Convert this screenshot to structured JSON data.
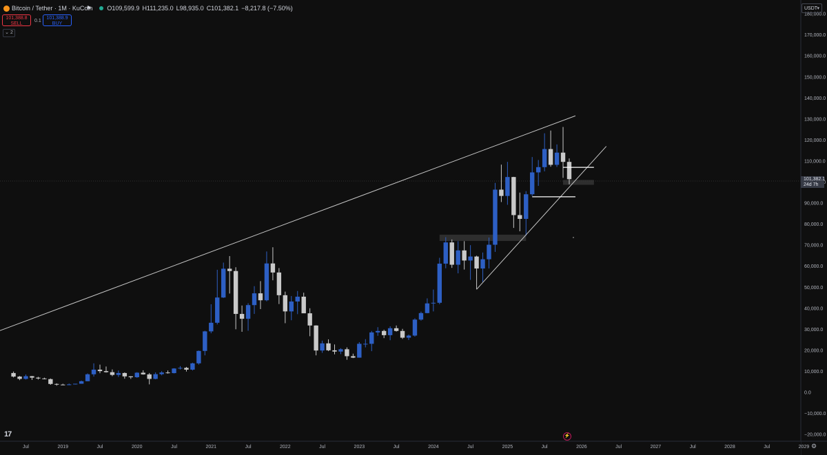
{
  "legend": {
    "symbol": "Bitcoin / Tether · 1M · KuCoin",
    "open": "O109,599.9",
    "high": "H111,235.0",
    "low": "L98,935.0",
    "close": "C101,382.1",
    "change": "−8,217.8 (−7.50%)"
  },
  "trade": {
    "sell_price": "101,388.8",
    "sell_label": "SELL",
    "spread": "0.1",
    "buy_price": "101,388.9",
    "buy_label": "BUY"
  },
  "indicator_count": "2",
  "currency": "USDT",
  "price_tag": {
    "price": "101,382.1",
    "countdown": "24d 7h"
  },
  "colors": {
    "up": "#2d5fc4",
    "down": "#c9c9c9",
    "background": "#0f0f0f",
    "trendline": "#c8c8c8"
  },
  "icons": {
    "logo": "tradingview-logo-icon",
    "flash": "flash-icon",
    "settings": "settings-icon"
  },
  "chart_data": {
    "type": "candlestick",
    "timeframe": "1M",
    "y_ticks": [
      "180,000.0",
      "170,000.0",
      "160,000.0",
      "150,000.0",
      "140,000.0",
      "130,000.0",
      "120,000.0",
      "110,000.0",
      "100,000.0",
      "90,000.0",
      "80,000.0",
      "70,000.0",
      "60,000.0",
      "50,000.0",
      "40,000.0",
      "30,000.0",
      "20,000.0",
      "10,000.0",
      "0.0",
      "−10,000.0",
      "−20,000.0"
    ],
    "y_tick_values": [
      180000,
      170000,
      160000,
      150000,
      140000,
      130000,
      120000,
      110000,
      100000,
      90000,
      80000,
      70000,
      60000,
      50000,
      40000,
      30000,
      20000,
      10000,
      0,
      -10000,
      -20000
    ],
    "x_ticks": [
      {
        "label": "Jul",
        "date": "2018-07"
      },
      {
        "label": "2019",
        "date": "2019-01"
      },
      {
        "label": "Jul",
        "date": "2019-07"
      },
      {
        "label": "2020",
        "date": "2020-01"
      },
      {
        "label": "Jul",
        "date": "2020-07"
      },
      {
        "label": "2021",
        "date": "2021-01"
      },
      {
        "label": "Jul",
        "date": "2021-07"
      },
      {
        "label": "2022",
        "date": "2022-01"
      },
      {
        "label": "Jul",
        "date": "2022-07"
      },
      {
        "label": "2023",
        "date": "2023-01"
      },
      {
        "label": "Jul",
        "date": "2023-07"
      },
      {
        "label": "2024",
        "date": "2024-01"
      },
      {
        "label": "Jul",
        "date": "2024-07"
      },
      {
        "label": "2025",
        "date": "2025-01"
      },
      {
        "label": "Jul",
        "date": "2025-07"
      },
      {
        "label": "2026",
        "date": "2026-01"
      },
      {
        "label": "Jul",
        "date": "2026-07"
      },
      {
        "label": "2027",
        "date": "2027-01"
      },
      {
        "label": "Jul",
        "date": "2027-07"
      },
      {
        "label": "2028",
        "date": "2028-01"
      },
      {
        "label": "Jul",
        "date": "2028-07"
      },
      {
        "label": "2029",
        "date": "2029-01"
      }
    ],
    "candles": [
      {
        "t": "2018-05",
        "o": 9200,
        "h": 9900,
        "l": 7100,
        "c": 7500
      },
      {
        "t": "2018-06",
        "o": 7500,
        "h": 7800,
        "l": 5800,
        "c": 6400
      },
      {
        "t": "2018-07",
        "o": 6400,
        "h": 8500,
        "l": 6100,
        "c": 7700
      },
      {
        "t": "2018-08",
        "o": 7700,
        "h": 7800,
        "l": 5900,
        "c": 7000
      },
      {
        "t": "2018-09",
        "o": 7000,
        "h": 7400,
        "l": 6100,
        "c": 6600
      },
      {
        "t": "2018-10",
        "o": 6600,
        "h": 7000,
        "l": 6200,
        "c": 6300
      },
      {
        "t": "2018-11",
        "o": 6300,
        "h": 6600,
        "l": 3600,
        "c": 4000
      },
      {
        "t": "2018-12",
        "o": 4000,
        "h": 4300,
        "l": 3200,
        "c": 3700
      },
      {
        "t": "2019-01",
        "o": 3700,
        "h": 4100,
        "l": 3400,
        "c": 3450
      },
      {
        "t": "2019-02",
        "o": 3450,
        "h": 4200,
        "l": 3400,
        "c": 3800
      },
      {
        "t": "2019-03",
        "o": 3800,
        "h": 4100,
        "l": 3700,
        "c": 4100
      },
      {
        "t": "2019-04",
        "o": 4100,
        "h": 5600,
        "l": 4100,
        "c": 5300
      },
      {
        "t": "2019-05",
        "o": 5300,
        "h": 9000,
        "l": 5300,
        "c": 8600
      },
      {
        "t": "2019-06",
        "o": 8600,
        "h": 13800,
        "l": 7500,
        "c": 10800
      },
      {
        "t": "2019-07",
        "o": 10800,
        "h": 13200,
        "l": 9100,
        "c": 10100
      },
      {
        "t": "2019-08",
        "o": 10100,
        "h": 12300,
        "l": 9400,
        "c": 9600
      },
      {
        "t": "2019-09",
        "o": 9600,
        "h": 10900,
        "l": 7700,
        "c": 8300
      },
      {
        "t": "2019-10",
        "o": 8300,
        "h": 10400,
        "l": 7300,
        "c": 9200
      },
      {
        "t": "2019-11",
        "o": 9200,
        "h": 9500,
        "l": 6500,
        "c": 7600
      },
      {
        "t": "2019-12",
        "o": 7600,
        "h": 7700,
        "l": 6400,
        "c": 7200
      },
      {
        "t": "2020-01",
        "o": 7200,
        "h": 9600,
        "l": 6900,
        "c": 9350
      },
      {
        "t": "2020-02",
        "o": 9350,
        "h": 10500,
        "l": 8400,
        "c": 8550
      },
      {
        "t": "2020-03",
        "o": 8550,
        "h": 9200,
        "l": 3800,
        "c": 6400
      },
      {
        "t": "2020-04",
        "o": 6400,
        "h": 9500,
        "l": 6200,
        "c": 8650
      },
      {
        "t": "2020-05",
        "o": 8650,
        "h": 10100,
        "l": 8100,
        "c": 9450
      },
      {
        "t": "2020-06",
        "o": 9450,
        "h": 10400,
        "l": 8900,
        "c": 9150
      },
      {
        "t": "2020-07",
        "o": 9150,
        "h": 11500,
        "l": 9000,
        "c": 11350
      },
      {
        "t": "2020-08",
        "o": 11350,
        "h": 12500,
        "l": 10900,
        "c": 11650
      },
      {
        "t": "2020-09",
        "o": 11650,
        "h": 12100,
        "l": 9900,
        "c": 10800
      },
      {
        "t": "2020-10",
        "o": 10800,
        "h": 14100,
        "l": 10400,
        "c": 13800
      },
      {
        "t": "2020-11",
        "o": 13800,
        "h": 19900,
        "l": 13200,
        "c": 19700
      },
      {
        "t": "2020-12",
        "o": 19700,
        "h": 29300,
        "l": 17600,
        "c": 29000
      },
      {
        "t": "2021-01",
        "o": 29000,
        "h": 41900,
        "l": 28100,
        "c": 33100
      },
      {
        "t": "2021-02",
        "o": 33100,
        "h": 58300,
        "l": 32300,
        "c": 45100
      },
      {
        "t": "2021-03",
        "o": 45100,
        "h": 61700,
        "l": 44900,
        "c": 58800
      },
      {
        "t": "2021-04",
        "o": 58800,
        "h": 64800,
        "l": 47000,
        "c": 57700
      },
      {
        "t": "2021-05",
        "o": 57700,
        "h": 59500,
        "l": 30000,
        "c": 37300
      },
      {
        "t": "2021-06",
        "o": 37300,
        "h": 41300,
        "l": 28800,
        "c": 35000
      },
      {
        "t": "2021-07",
        "o": 35000,
        "h": 42400,
        "l": 29300,
        "c": 41500
      },
      {
        "t": "2021-08",
        "o": 41500,
        "h": 50500,
        "l": 37300,
        "c": 47100
      },
      {
        "t": "2021-09",
        "o": 47100,
        "h": 52900,
        "l": 39600,
        "c": 43800
      },
      {
        "t": "2021-10",
        "o": 43800,
        "h": 67000,
        "l": 43300,
        "c": 61300
      },
      {
        "t": "2021-11",
        "o": 61300,
        "h": 69000,
        "l": 53300,
        "c": 57000
      },
      {
        "t": "2021-12",
        "o": 57000,
        "h": 59100,
        "l": 42000,
        "c": 46200
      },
      {
        "t": "2022-01",
        "o": 46200,
        "h": 47900,
        "l": 32900,
        "c": 38500
      },
      {
        "t": "2022-02",
        "o": 38500,
        "h": 45800,
        "l": 34300,
        "c": 43200
      },
      {
        "t": "2022-03",
        "o": 43200,
        "h": 48200,
        "l": 37200,
        "c": 45500
      },
      {
        "t": "2022-04",
        "o": 45500,
        "h": 47400,
        "l": 37700,
        "c": 37600
      },
      {
        "t": "2022-05",
        "o": 37600,
        "h": 40000,
        "l": 26700,
        "c": 31800
      },
      {
        "t": "2022-06",
        "o": 31800,
        "h": 31900,
        "l": 17600,
        "c": 19900
      },
      {
        "t": "2022-07",
        "o": 19900,
        "h": 24600,
        "l": 18800,
        "c": 23300
      },
      {
        "t": "2022-08",
        "o": 23300,
        "h": 25200,
        "l": 19600,
        "c": 20000
      },
      {
        "t": "2022-09",
        "o": 20000,
        "h": 22800,
        "l": 18100,
        "c": 19400
      },
      {
        "t": "2022-10",
        "o": 19400,
        "h": 21000,
        "l": 18200,
        "c": 20500
      },
      {
        "t": "2022-11",
        "o": 20500,
        "h": 21400,
        "l": 15500,
        "c": 17200
      },
      {
        "t": "2022-12",
        "o": 17200,
        "h": 18400,
        "l": 16300,
        "c": 16500
      },
      {
        "t": "2023-01",
        "o": 16500,
        "h": 23900,
        "l": 16500,
        "c": 23100
      },
      {
        "t": "2023-02",
        "o": 23100,
        "h": 25300,
        "l": 21400,
        "c": 23100
      },
      {
        "t": "2023-03",
        "o": 23100,
        "h": 29200,
        "l": 19600,
        "c": 28500
      },
      {
        "t": "2023-04",
        "o": 28500,
        "h": 31000,
        "l": 26900,
        "c": 29200
      },
      {
        "t": "2023-05",
        "o": 29200,
        "h": 29800,
        "l": 25800,
        "c": 27200
      },
      {
        "t": "2023-06",
        "o": 27200,
        "h": 31400,
        "l": 24800,
        "c": 30500
      },
      {
        "t": "2023-07",
        "o": 30500,
        "h": 31800,
        "l": 28900,
        "c": 29200
      },
      {
        "t": "2023-08",
        "o": 29200,
        "h": 30200,
        "l": 25400,
        "c": 26000
      },
      {
        "t": "2023-09",
        "o": 26000,
        "h": 27500,
        "l": 24900,
        "c": 27000
      },
      {
        "t": "2023-10",
        "o": 27000,
        "h": 35200,
        "l": 26500,
        "c": 34600
      },
      {
        "t": "2023-11",
        "o": 34600,
        "h": 38400,
        "l": 34100,
        "c": 37700
      },
      {
        "t": "2023-12",
        "o": 37700,
        "h": 44700,
        "l": 37600,
        "c": 42300
      },
      {
        "t": "2024-01",
        "o": 42300,
        "h": 48900,
        "l": 38500,
        "c": 42600
      },
      {
        "t": "2024-02",
        "o": 42600,
        "h": 64000,
        "l": 41900,
        "c": 61200
      },
      {
        "t": "2024-03",
        "o": 61200,
        "h": 73800,
        "l": 59000,
        "c": 71300
      },
      {
        "t": "2024-04",
        "o": 71300,
        "h": 72700,
        "l": 59200,
        "c": 60700
      },
      {
        "t": "2024-05",
        "o": 60700,
        "h": 71900,
        "l": 56600,
        "c": 67500
      },
      {
        "t": "2024-06",
        "o": 67500,
        "h": 71900,
        "l": 58400,
        "c": 62700
      },
      {
        "t": "2024-07",
        "o": 62700,
        "h": 70000,
        "l": 53500,
        "c": 64600
      },
      {
        "t": "2024-08",
        "o": 64600,
        "h": 65000,
        "l": 49000,
        "c": 58900
      },
      {
        "t": "2024-09",
        "o": 58900,
        "h": 66500,
        "l": 52500,
        "c": 63300
      },
      {
        "t": "2024-10",
        "o": 63300,
        "h": 73600,
        "l": 58900,
        "c": 70200
      },
      {
        "t": "2024-11",
        "o": 70200,
        "h": 99600,
        "l": 66800,
        "c": 96400
      },
      {
        "t": "2024-12",
        "o": 96400,
        "h": 108300,
        "l": 90500,
        "c": 93400
      },
      {
        "t": "2025-01",
        "o": 93400,
        "h": 109600,
        "l": 89200,
        "c": 102400
      },
      {
        "t": "2025-02",
        "o": 102400,
        "h": 102500,
        "l": 78200,
        "c": 84300
      },
      {
        "t": "2025-03",
        "o": 84300,
        "h": 95000,
        "l": 76600,
        "c": 82500
      },
      {
        "t": "2025-04",
        "o": 82500,
        "h": 95700,
        "l": 74500,
        "c": 94200
      },
      {
        "t": "2025-05",
        "o": 94200,
        "h": 111900,
        "l": 93400,
        "c": 104600
      },
      {
        "t": "2025-06",
        "o": 104600,
        "h": 110500,
        "l": 98200,
        "c": 107100
      },
      {
        "t": "2025-07",
        "o": 107100,
        "h": 123200,
        "l": 105100,
        "c": 115700
      },
      {
        "t": "2025-08",
        "o": 115700,
        "h": 124500,
        "l": 107300,
        "c": 108200
      },
      {
        "t": "2025-09",
        "o": 108200,
        "h": 117900,
        "l": 107200,
        "c": 114000
      },
      {
        "t": "2025-10",
        "o": 114000,
        "h": 126200,
        "l": 102000,
        "c": 109600
      },
      {
        "t": "2025-11",
        "o": 109599.9,
        "h": 111235.0,
        "l": 98935.0,
        "c": 101382.1
      }
    ],
    "trendlines": [
      {
        "from": {
          "t": "2017-09",
          "v": 23000
        },
        "to": {
          "t": "2025-12",
          "v": 131500
        }
      },
      {
        "from": {
          "t": "2024-08",
          "v": 49000
        },
        "to": {
          "t": "2026-05",
          "v": 117000
        }
      }
    ],
    "horizontal_levels": [
      {
        "from": "2025-10",
        "to": "2026-03",
        "v": 107000
      },
      {
        "from": "2025-05",
        "to": "2025-12",
        "v": 93000
      }
    ],
    "zones": [
      {
        "from": "2024-02",
        "to": "2025-04",
        "low": 72000,
        "high": 75000
      },
      {
        "from": "2025-10",
        "to": "2026-03",
        "low": 98700,
        "high": 101000
      }
    ],
    "current_price": 101382.1
  }
}
